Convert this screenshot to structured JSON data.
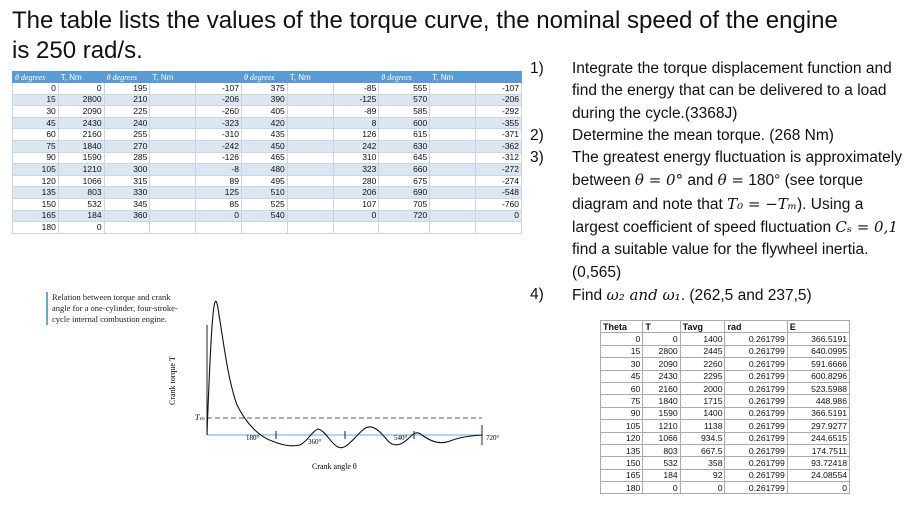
{
  "heading": "The table lists the values of the torque curve, the nominal speed of the engine is 250 rad/s.",
  "torque_table": {
    "headers": [
      "θ degrees",
      "T, Nm",
      "θ degrees",
      "T, Nm",
      "",
      "θ degrees",
      "T, Nm",
      "",
      "θ degrees",
      "T, Nm",
      ""
    ],
    "rows": [
      [
        "0",
        "0",
        "195",
        "",
        "-107",
        "375",
        "",
        "-85",
        "555",
        "",
        "-107"
      ],
      [
        "15",
        "2800",
        "210",
        "",
        "-206",
        "390",
        "",
        "-125",
        "570",
        "",
        "-206"
      ],
      [
        "30",
        "2090",
        "225",
        "",
        "-260",
        "405",
        "",
        "-89",
        "585",
        "",
        "-292"
      ],
      [
        "45",
        "2430",
        "240",
        "",
        "-323",
        "420",
        "",
        "8",
        "600",
        "",
        "-355"
      ],
      [
        "60",
        "2160",
        "255",
        "",
        "-310",
        "435",
        "",
        "126",
        "615",
        "",
        "-371"
      ],
      [
        "75",
        "1840",
        "270",
        "",
        "-242",
        "450",
        "",
        "242",
        "630",
        "",
        "-362"
      ],
      [
        "90",
        "1590",
        "285",
        "",
        "-126",
        "465",
        "",
        "310",
        "645",
        "",
        "-312"
      ],
      [
        "105",
        "1210",
        "300",
        "",
        "-8",
        "480",
        "",
        "323",
        "660",
        "",
        "-272"
      ],
      [
        "120",
        "1066",
        "315",
        "",
        "89",
        "495",
        "",
        "280",
        "675",
        "",
        "-274"
      ],
      [
        "135",
        "803",
        "330",
        "",
        "125",
        "510",
        "",
        "206",
        "690",
        "",
        "-548"
      ],
      [
        "150",
        "532",
        "345",
        "",
        "85",
        "525",
        "",
        "107",
        "705",
        "",
        "-760"
      ],
      [
        "165",
        "184",
        "360",
        "",
        "0",
        "540",
        "",
        "0",
        "720",
        "",
        "0"
      ],
      [
        "180",
        "0",
        "",
        "",
        "",
        "",
        "",
        "",
        "",
        "",
        ""
      ]
    ]
  },
  "questions": [
    {
      "num": "1)",
      "parts": [
        "Integrate the torque displacement function and find the energy that can be delivered to a load during the cycle.(3368J)"
      ]
    },
    {
      "num": "2)",
      "parts": [
        "Determine the mean torque. (268 Nm)"
      ]
    },
    {
      "num": "3)",
      "parts": [
        "The greatest energy fluctuation is approximately between ",
        "θ = 0°",
        " and ",
        "θ =",
        " 180° (see torque diagram and note that ",
        "T₀ = −Tₘ",
        "). Using a largest coefficient of speed fluctuation ",
        "Cₛ = 0,1",
        " find a suitable value for the flywheel inertia. (0,565)"
      ]
    },
    {
      "num": "4)",
      "parts": [
        "Find ",
        "ω₂ and ω₁",
        ". (262,5 and 237,5)"
      ]
    }
  ],
  "figure": {
    "caption": "Relation between torque and crank angle for a one-cylinder, four-stroke-cycle internal combustion engine.",
    "ylabel": "Crank torque T",
    "xlabel": "Crank angle θ",
    "tm_label": "Tₘ",
    "ticks": [
      "180°",
      "360°",
      "540°",
      "720°"
    ]
  },
  "energy_table": {
    "headers": [
      "Theta",
      "T",
      "Tavg",
      "rad",
      "E"
    ],
    "rows": [
      [
        "0",
        "0",
        "1400",
        "0.261799",
        "366.5191"
      ],
      [
        "15",
        "2800",
        "2445",
        "0.261799",
        "640.0995"
      ],
      [
        "30",
        "2090",
        "2260",
        "0.261799",
        "591.6666"
      ],
      [
        "45",
        "2430",
        "2295",
        "0.261799",
        "600.8296"
      ],
      [
        "60",
        "2160",
        "2000",
        "0.261799",
        "523.5988"
      ],
      [
        "75",
        "1840",
        "1715",
        "0.261799",
        "448.986"
      ],
      [
        "90",
        "1590",
        "1400",
        "0.261799",
        "366.5191"
      ],
      [
        "105",
        "1210",
        "1138",
        "0.261799",
        "297.9277"
      ],
      [
        "120",
        "1066",
        "934.5",
        "0.261799",
        "244.6515"
      ],
      [
        "135",
        "803",
        "667.5",
        "0.261799",
        "174.7511"
      ],
      [
        "150",
        "532",
        "358",
        "0.261799",
        "93.72418"
      ],
      [
        "165",
        "184",
        "92",
        "0.261799",
        "24.08554"
      ],
      [
        "180",
        "0",
        "0",
        "0.261799",
        "0"
      ]
    ]
  }
}
